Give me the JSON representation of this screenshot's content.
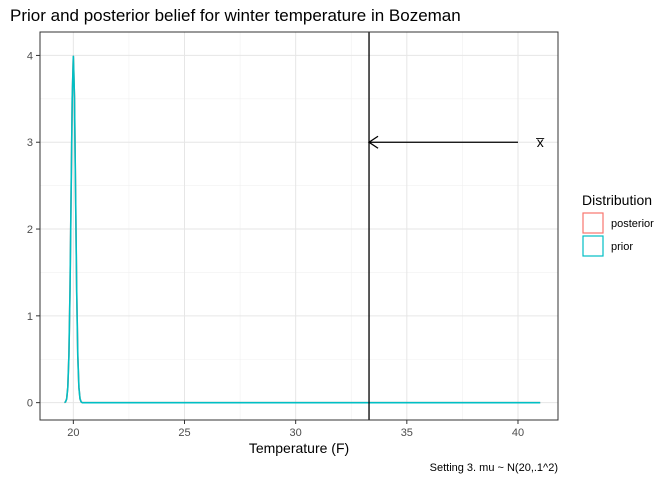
{
  "chart_data": {
    "type": "line",
    "title": "Prior and posterior belief for winter temperature in Bozeman",
    "xlabel": "Temperature (F)",
    "ylabel": "",
    "caption": "Setting 3. mu ~ N(20,.1^2)",
    "xlim": [
      18.5,
      41.8
    ],
    "ylim": [
      -0.2,
      4.27
    ],
    "x_ticks": [
      20,
      25,
      30,
      35,
      40
    ],
    "y_ticks": [
      0,
      1,
      2,
      3,
      4
    ],
    "grid": true,
    "legend": {
      "title": "Distribution",
      "position": "right",
      "entries": [
        {
          "label": "posterior",
          "color": "#F8766D"
        },
        {
          "label": "prior",
          "color": "#00BFC4"
        }
      ]
    },
    "series": [
      {
        "name": "prior",
        "color": "#00BFC4",
        "x": [
          19.6,
          19.65,
          19.7,
          19.75,
          19.8,
          19.85,
          19.9,
          19.95,
          20.0,
          20.05,
          20.1,
          20.15,
          20.2,
          20.25,
          20.3,
          20.35,
          20.4,
          20.5,
          21,
          25,
          30,
          35,
          41
        ],
        "y": [
          0.0,
          0.009,
          0.044,
          0.175,
          0.54,
          1.295,
          2.42,
          3.52,
          3.99,
          3.52,
          2.42,
          1.295,
          0.54,
          0.175,
          0.044,
          0.009,
          0.0,
          0.0,
          0.0,
          0.0,
          0.0,
          0.0,
          0.0
        ]
      },
      {
        "name": "posterior",
        "color": "#F8766D",
        "x": [
          19.6,
          19.65,
          19.7,
          19.75,
          19.8,
          19.85,
          19.9,
          19.95,
          20.0,
          20.05,
          20.1,
          20.15,
          20.2,
          20.25,
          20.3,
          20.35,
          20.4,
          20.5,
          21,
          25,
          30,
          35,
          41
        ],
        "y": [
          0.0,
          0.009,
          0.044,
          0.175,
          0.54,
          1.295,
          2.42,
          3.52,
          3.99,
          3.52,
          2.42,
          1.295,
          0.54,
          0.175,
          0.044,
          0.009,
          0.0,
          0.0,
          0.0,
          0.0,
          0.0,
          0.0,
          0.0
        ]
      }
    ],
    "vline": {
      "x": 33.3,
      "color": "#000000"
    },
    "annotation": {
      "text": "x̅",
      "text_x": 41,
      "text_y": 3,
      "arrow_from_x": 40,
      "arrow_to_x": 33.3,
      "arrow_y": 3
    }
  }
}
